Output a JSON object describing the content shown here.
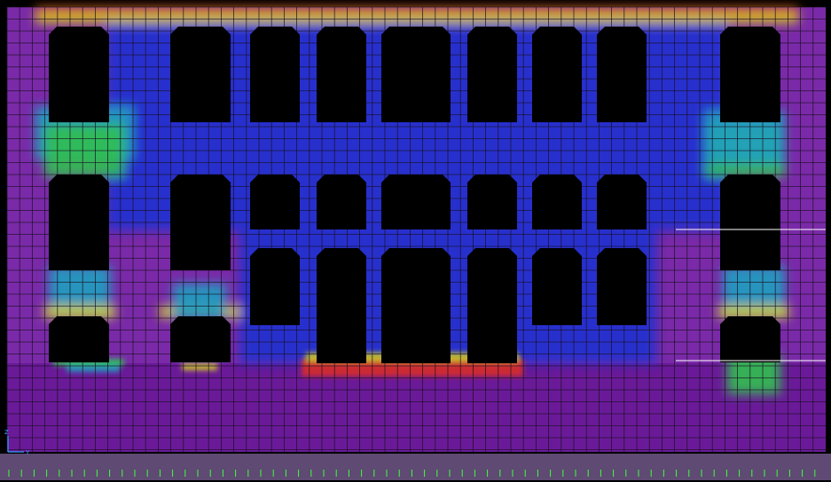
{
  "viewport": {
    "axis_triad": {
      "z_label": "Z",
      "y_label": "Y"
    }
  },
  "colors": {
    "background": "#000000",
    "base_strip": "#5e4a72",
    "grid_line": "#1a1020",
    "low_stress": "#2030d0",
    "mid_low": "#20a0c0",
    "mid": "#30c050",
    "mid_high": "#d0d020",
    "high_stress": "#e03020",
    "background_field": "#7a2aa8",
    "background_field_dark": "#6a1a98",
    "opening": "#000000",
    "axis_triad": "#30a0ff",
    "tick_marks": "#40ff40",
    "highlight_line": "#ffffff"
  },
  "legend": {
    "colormap": [
      "#2030d0",
      "#20a0c0",
      "#30c050",
      "#d0d020",
      "#e03020"
    ]
  }
}
